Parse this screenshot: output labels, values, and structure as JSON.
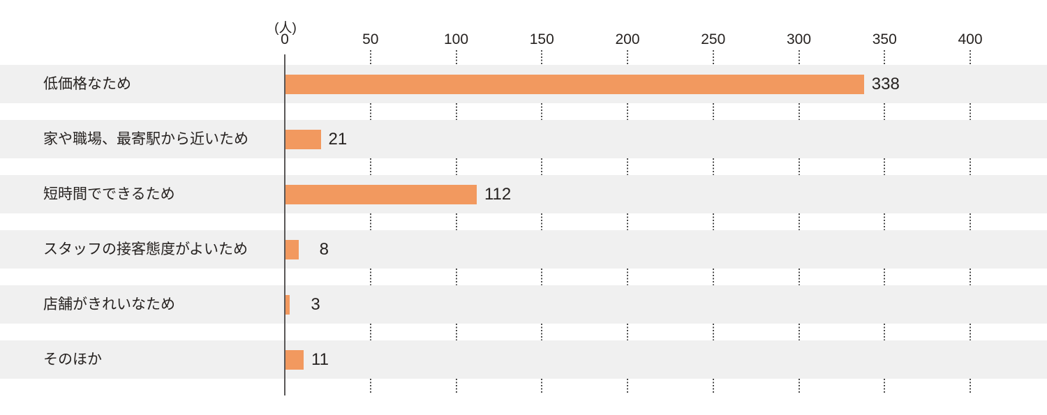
{
  "chart_data": {
    "type": "bar",
    "orientation": "horizontal",
    "title": "",
    "unit_label": "(人)",
    "categories": [
      "低価格なため",
      "家や職場、最寄駅から近いため",
      "短時間でできるため",
      "スタッフの接客態度がよいため",
      "店舗がきれいなため",
      "そのほか"
    ],
    "values": [
      338,
      21,
      112,
      8,
      3,
      11
    ],
    "x_ticks": [
      0,
      50,
      100,
      150,
      200,
      250,
      300,
      350,
      400
    ],
    "xlim": [
      0,
      445
    ],
    "xlabel": "",
    "ylabel": "",
    "legend_position": "none",
    "grid": "vertical-dotted-segments-between-row-bands",
    "colors": {
      "bar": "#F2995F",
      "row_stripe": "#F0F0F0",
      "axis_line": "#595757",
      "grid_dot": "#4A4A4A",
      "text": "#262220",
      "background": "#FFFFFF"
    }
  }
}
